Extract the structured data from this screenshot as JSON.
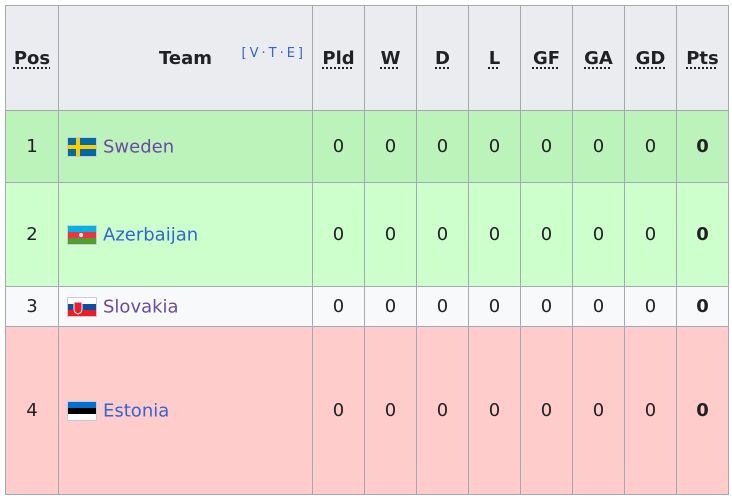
{
  "table": {
    "header": {
      "pos": "Pos",
      "team": "Team",
      "navbox": "[V·T·E]",
      "stats": [
        "Pld",
        "W",
        "D",
        "L",
        "GF",
        "GA",
        "GD",
        "Pts"
      ]
    },
    "rows": [
      {
        "pos": "1",
        "team": "Sweden",
        "link_color": "#6b4ba1",
        "background": "#bbf3bb",
        "stats": [
          "0",
          "0",
          "0",
          "0",
          "0",
          "0",
          "0",
          "0"
        ]
      },
      {
        "pos": "2",
        "team": "Azerbaijan",
        "link_color": "#3366cc",
        "background": "#ccffcc",
        "stats": [
          "0",
          "0",
          "0",
          "0",
          "0",
          "0",
          "0",
          "0"
        ]
      },
      {
        "pos": "3",
        "team": "Slovakia",
        "link_color": "#6b4ba1",
        "background": "#f8f9fa",
        "stats": [
          "0",
          "0",
          "0",
          "0",
          "0",
          "0",
          "0",
          "0"
        ]
      },
      {
        "pos": "4",
        "team": "Estonia",
        "link_color": "#3366cc",
        "background": "#ffcccc",
        "stats": [
          "0",
          "0",
          "0",
          "0",
          "0",
          "0",
          "0",
          "0"
        ]
      }
    ]
  }
}
